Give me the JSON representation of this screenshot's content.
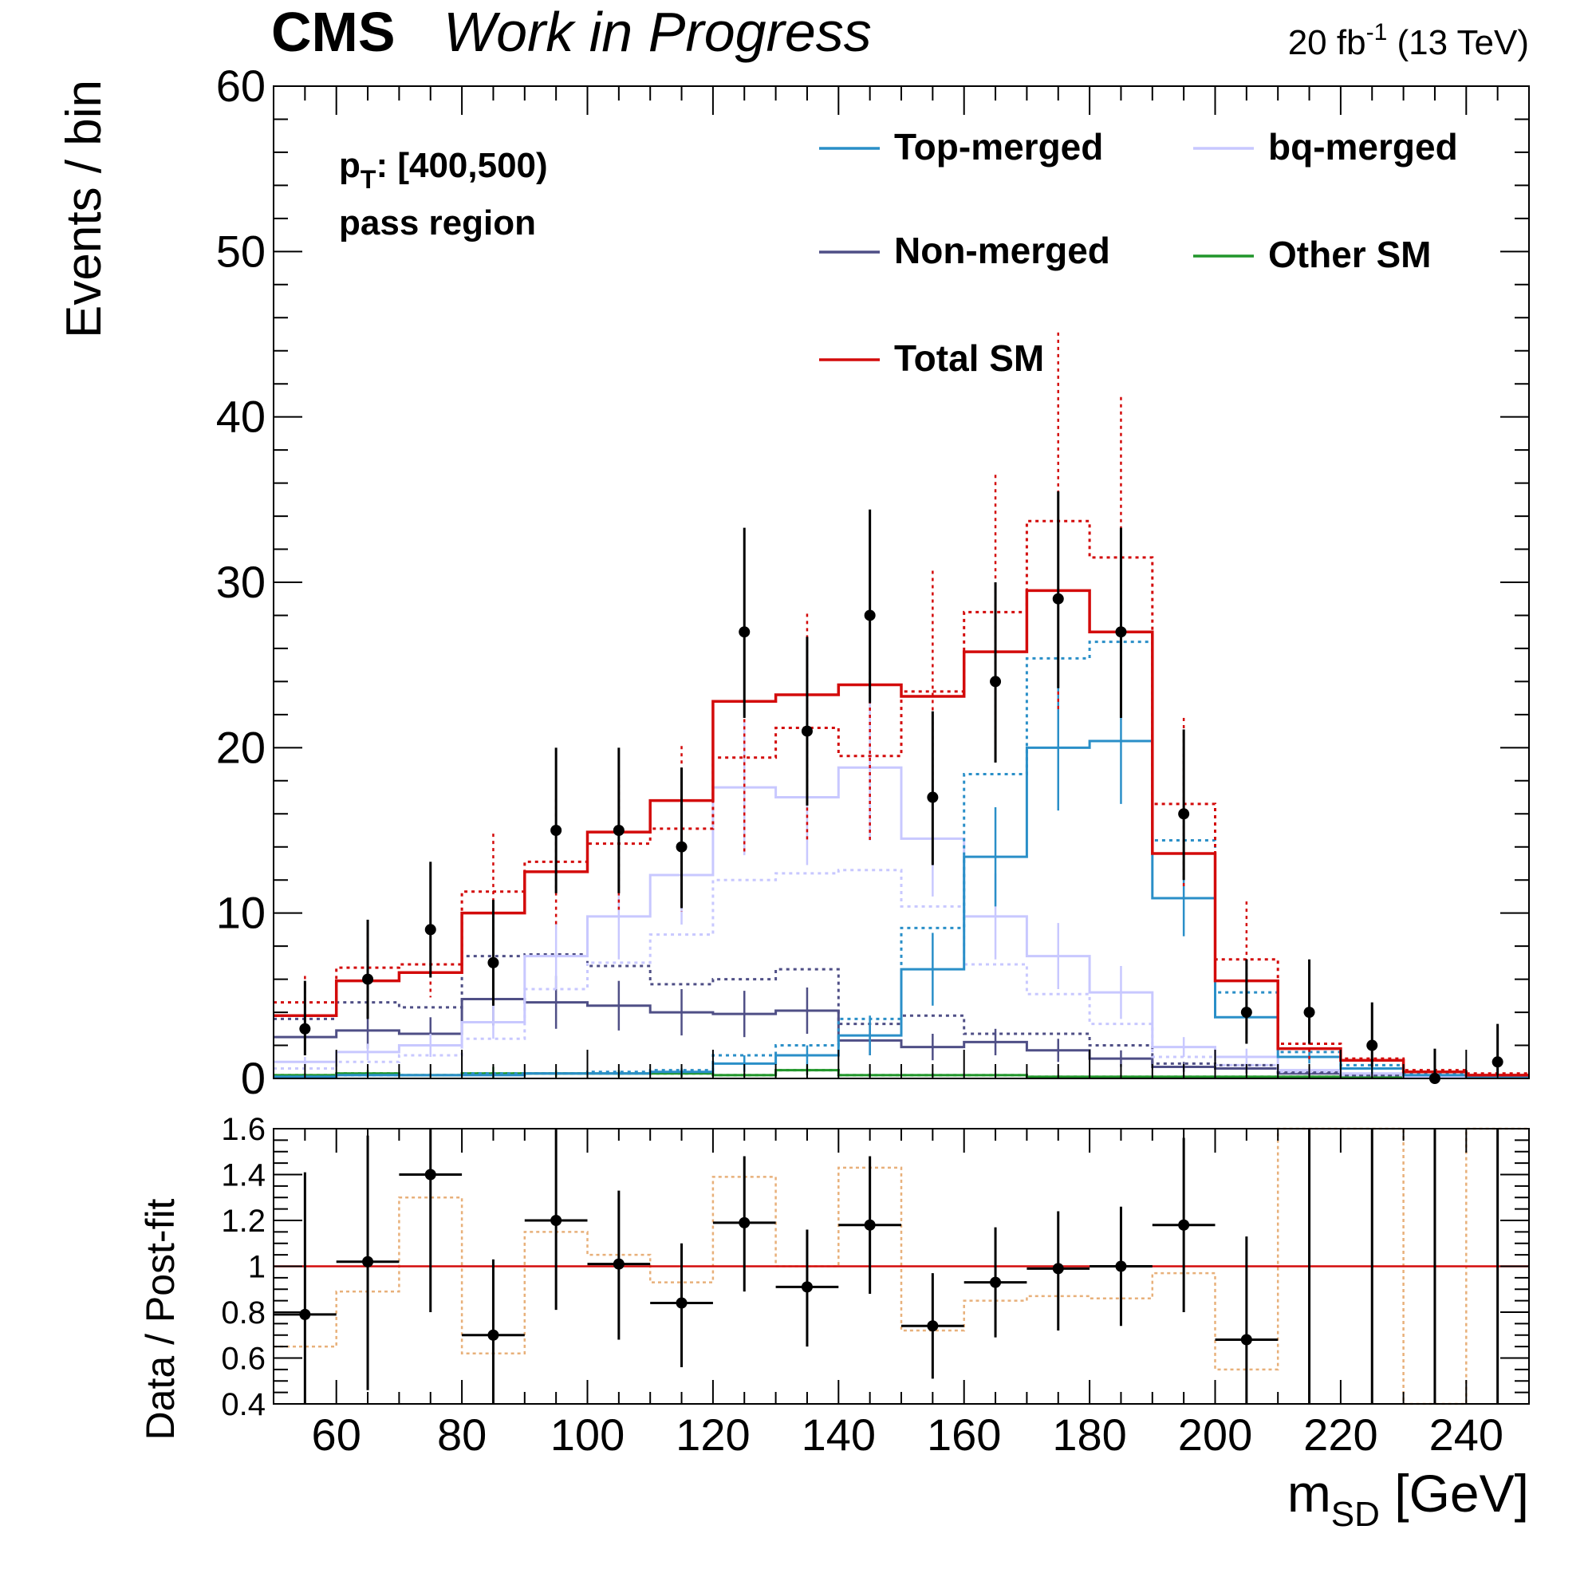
{
  "header": {
    "experiment": "CMS",
    "status": "Work in Progress",
    "lumi_value": "20 fb",
    "lumi_exp": "-1",
    "energy": "(13 TeV)"
  },
  "annotations": {
    "pt_label": "p",
    "pt_sub": "T",
    "pt_range": ": [400,500)",
    "region": "pass region"
  },
  "colors": {
    "top": "#2a8fc8",
    "nonmerged": "#4f4f86",
    "bq": "#c8c8ff",
    "other": "#21962b",
    "total": "#d30b0b",
    "prefit_ratio": "#e8b07a",
    "data": "#000000"
  },
  "chart_data": [
    {
      "type": "line",
      "title": "",
      "xlabel": "",
      "ylabel": "Events / bin",
      "xlim": [
        50,
        250
      ],
      "ylim": [
        0,
        60
      ],
      "yticks": [
        0,
        10,
        20,
        30,
        40,
        50,
        60
      ],
      "bin_edges": [
        50,
        60,
        70,
        80,
        90,
        100,
        110,
        120,
        130,
        140,
        150,
        160,
        170,
        180,
        190,
        200,
        210,
        220,
        230,
        240,
        250
      ],
      "legend": {
        "placement": "top-right",
        "entries": [
          {
            "key": "top",
            "label": "Top-merged"
          },
          {
            "key": "bq",
            "label": "bq-merged"
          },
          {
            "key": "nonmerged",
            "label": "Non-merged"
          },
          {
            "key": "other",
            "label": "Other SM"
          },
          {
            "key": "total",
            "label": "Total SM"
          }
        ]
      },
      "series": [
        {
          "key": "top",
          "name": "Top-merged",
          "values": [
            0.1,
            0.2,
            0.2,
            0.2,
            0.3,
            0.3,
            0.4,
            0.9,
            1.4,
            2.6,
            6.6,
            13.4,
            20.0,
            20.4,
            10.9,
            3.7,
            1.3,
            0.6,
            0.2,
            0.1
          ],
          "prefit": [
            0.1,
            0.2,
            0.2,
            0.3,
            0.3,
            0.4,
            0.5,
            1.4,
            2.0,
            3.6,
            9.1,
            18.4,
            25.4,
            26.4,
            14.4,
            5.2,
            1.6,
            0.8,
            0.3,
            0.1
          ],
          "errors": [
            0.1,
            0.1,
            0.1,
            0.1,
            0.1,
            0.1,
            0.2,
            0.5,
            0.6,
            1.2,
            2.2,
            3.0,
            3.8,
            3.8,
            2.3,
            1.0,
            0.4,
            0.3,
            0.1,
            0.1
          ]
        },
        {
          "key": "bq",
          "name": "bq-merged",
          "values": [
            1.0,
            1.6,
            2.0,
            3.4,
            7.4,
            9.8,
            12.3,
            17.6,
            17.0,
            18.8,
            14.5,
            9.8,
            7.4,
            5.2,
            1.9,
            1.3,
            0.5,
            0.3,
            0.1,
            0.1
          ],
          "prefit": [
            0.6,
            1.0,
            1.4,
            2.4,
            5.4,
            7.0,
            8.7,
            12.0,
            12.4,
            12.6,
            10.4,
            6.9,
            5.1,
            3.3,
            1.3,
            0.8,
            0.4,
            0.2,
            0.1,
            0.1
          ],
          "errors": [
            0.3,
            0.5,
            0.7,
            1.0,
            2.0,
            2.6,
            3.0,
            4.1,
            4.1,
            4.4,
            3.5,
            2.6,
            2.0,
            1.6,
            0.6,
            0.5,
            0.2,
            0.1,
            0.1,
            0.1
          ]
        },
        {
          "key": "nonmerged",
          "name": "Non-merged",
          "values": [
            2.5,
            2.9,
            2.7,
            4.8,
            4.6,
            4.4,
            4.0,
            3.9,
            4.1,
            2.3,
            1.9,
            2.2,
            1.7,
            1.2,
            0.7,
            0.6,
            0.3,
            0.2,
            0.1,
            0.1
          ],
          "prefit": [
            3.6,
            4.6,
            4.3,
            7.4,
            7.5,
            6.8,
            5.7,
            6.0,
            6.6,
            3.3,
            3.8,
            2.7,
            2.7,
            2.0,
            0.9,
            0.8,
            0.4,
            0.2,
            0.1,
            0.1
          ],
          "errors": [
            0.8,
            1.1,
            1.0,
            1.6,
            1.6,
            1.5,
            1.4,
            1.4,
            1.4,
            0.9,
            0.8,
            0.8,
            0.7,
            0.5,
            0.3,
            0.3,
            0.1,
            0.1,
            0.1,
            0.1
          ]
        },
        {
          "key": "other",
          "name": "Other SM",
          "values": [
            0.2,
            0.3,
            0.2,
            0.3,
            0.3,
            0.3,
            0.3,
            0.2,
            0.5,
            0.2,
            0.2,
            0.2,
            0.1,
            0.1,
            0.1,
            0.1,
            0.1,
            0.1,
            0.1,
            0.1
          ],
          "prefit": [
            0.2,
            0.3,
            0.2,
            0.3,
            0.3,
            0.3,
            0.3,
            0.2,
            0.5,
            0.2,
            0.2,
            0.2,
            0.1,
            0.1,
            0.1,
            0.1,
            0.1,
            0.1,
            0.1,
            0.1
          ],
          "errors": [
            0.1,
            0.2,
            0.1,
            0.4,
            0.2,
            0.2,
            0.2,
            0.1,
            0.3,
            0.1,
            0.1,
            0.1,
            0.1,
            0.1,
            0.1,
            0.1,
            0.1,
            0.1,
            0.1,
            0.1
          ]
        },
        {
          "key": "total",
          "name": "Total SM",
          "values": [
            3.8,
            5.9,
            6.4,
            10.0,
            12.5,
            14.9,
            16.8,
            22.8,
            23.2,
            23.8,
            23.1,
            25.8,
            29.5,
            27.0,
            13.6,
            5.9,
            1.8,
            1.1,
            0.4,
            0.2
          ],
          "prefit": [
            4.6,
            6.7,
            6.9,
            11.3,
            13.1,
            14.2,
            15.1,
            19.4,
            21.2,
            19.5,
            23.4,
            28.2,
            33.7,
            31.5,
            16.6,
            7.2,
            2.1,
            1.2,
            0.5,
            0.3
          ],
          "prefit_errors": [
            1.6,
            2.1,
            2.0,
            3.5,
            3.8,
            4.0,
            5.0,
            5.8,
            6.9,
            5.1,
            7.3,
            8.3,
            11.4,
            9.7,
            5.2,
            3.5,
            1.0,
            0.6,
            0.3,
            0.2
          ]
        }
      ],
      "data": {
        "name": "Data",
        "x": [
          55,
          65,
          75,
          85,
          95,
          105,
          115,
          125,
          135,
          145,
          155,
          165,
          175,
          185,
          195,
          205,
          215,
          225,
          235,
          245
        ],
        "y": [
          3,
          6,
          9,
          7,
          15,
          15,
          14,
          27,
          21,
          28,
          17,
          24,
          29,
          27,
          16,
          4,
          4,
          2,
          0,
          1
        ],
        "err_low": [
          1.6,
          2.4,
          2.9,
          2.6,
          3.8,
          3.8,
          3.7,
          5.2,
          4.5,
          5.3,
          4.1,
          4.9,
          5.4,
          5.2,
          4.0,
          1.9,
          1.9,
          1.3,
          0,
          0.8
        ],
        "err_high": [
          2.9,
          3.6,
          4.1,
          3.8,
          5.0,
          5.0,
          4.8,
          6.3,
          5.7,
          6.4,
          5.2,
          6.0,
          6.5,
          6.3,
          5.1,
          3.2,
          3.2,
          2.6,
          1.8,
          2.3
        ]
      }
    },
    {
      "type": "line",
      "title": "",
      "xlabel": "m",
      "xlabel_sub": "SD",
      "xlabel_unit": " [GeV]",
      "ylabel": "Data / Post-fit",
      "xlim": [
        50,
        250
      ],
      "ylim": [
        0.4,
        1.6
      ],
      "yticks": [
        0.4,
        0.6,
        0.8,
        1,
        1.2,
        1.4,
        1.6
      ],
      "xticks": [
        60,
        80,
        100,
        120,
        140,
        160,
        180,
        200,
        220,
        240
      ],
      "reference_line": 1,
      "ratio": {
        "x": [
          55,
          65,
          75,
          85,
          95,
          105,
          115,
          125,
          135,
          145,
          155,
          165,
          175,
          185,
          195,
          205,
          215,
          225,
          235,
          245
        ],
        "y": [
          0.79,
          1.02,
          1.4,
          0.7,
          1.2,
          1.01,
          0.84,
          1.19,
          0.91,
          1.18,
          0.74,
          0.93,
          0.99,
          1.0,
          1.18,
          0.68,
          null,
          null,
          null,
          null
        ],
        "err_low": [
          0.42,
          0.56,
          0.6,
          0.3,
          0.39,
          0.33,
          0.28,
          0.3,
          0.26,
          0.3,
          0.23,
          0.24,
          0.27,
          0.26,
          0.38,
          0.34,
          0.45,
          0.45,
          0.45,
          0.45
        ],
        "err_high": [
          0.62,
          0.55,
          0.25,
          0.33,
          0.42,
          0.32,
          0.26,
          0.29,
          0.25,
          0.3,
          0.23,
          0.24,
          0.25,
          0.26,
          0.38,
          0.45,
          0.6,
          0.6,
          0.6,
          0.6
        ]
      },
      "prefit_ratio": [
        0.65,
        0.89,
        1.3,
        0.62,
        1.15,
        1.05,
        0.93,
        1.39,
        1.0,
        1.43,
        0.72,
        0.85,
        0.87,
        0.86,
        0.97,
        0.55,
        1.6,
        1.6,
        0.4,
        1.6
      ]
    }
  ]
}
